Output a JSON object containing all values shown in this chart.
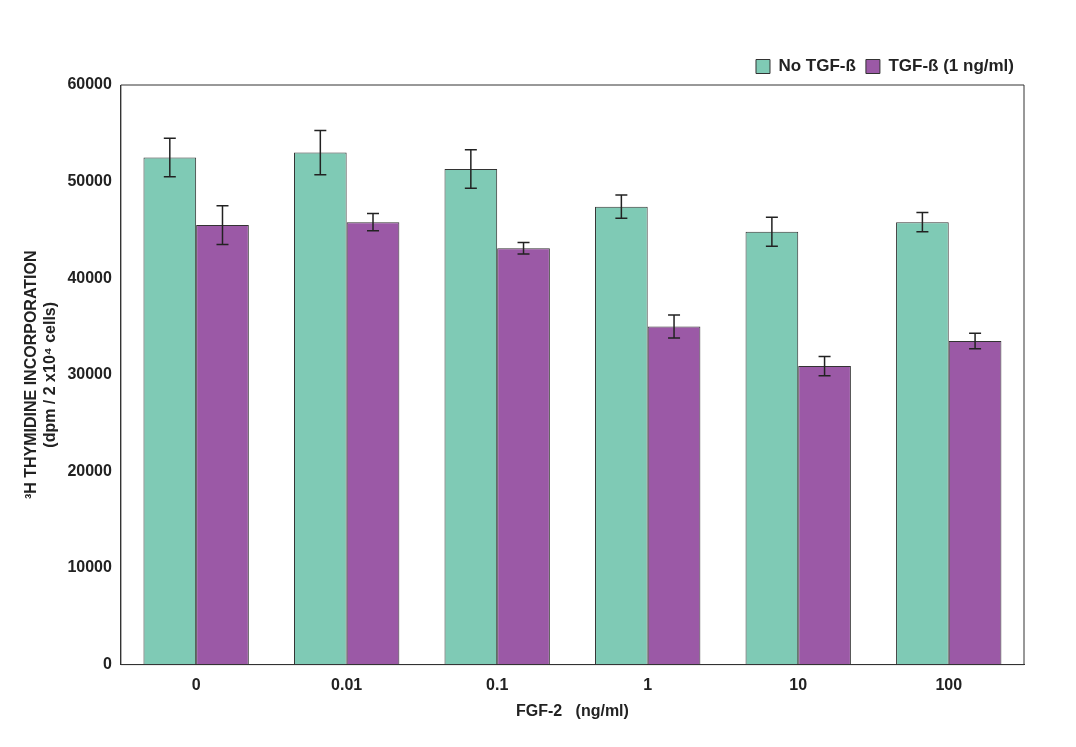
{
  "chart_data": {
    "type": "bar",
    "xlabel": "FGF-2   (ng/ml)",
    "ylabel": "³H THYMIDINE INCORPORATION\n(dpm / 2 x10⁴ cells)",
    "categories": [
      "0",
      "0.01",
      "0.1",
      "1",
      "10",
      "100"
    ],
    "series": [
      {
        "name": "No TGF-ß",
        "color": "#7fcab5",
        "values": [
          52500,
          53000,
          51300,
          47400,
          44800,
          45800
        ],
        "errors": [
          2000,
          2300,
          2000,
          1200,
          1500,
          1000
        ]
      },
      {
        "name": "TGF-ß (1 ng/ml)",
        "color": "#9b59a6",
        "values": [
          45500,
          45800,
          43100,
          35000,
          30900,
          33500
        ],
        "errors": [
          2000,
          900,
          600,
          1200,
          1000,
          800
        ]
      }
    ],
    "ylim": [
      0,
      60000
    ],
    "yticks": [
      0,
      10000,
      20000,
      30000,
      40000,
      50000,
      60000
    ],
    "grid": false,
    "legend": "top right"
  }
}
